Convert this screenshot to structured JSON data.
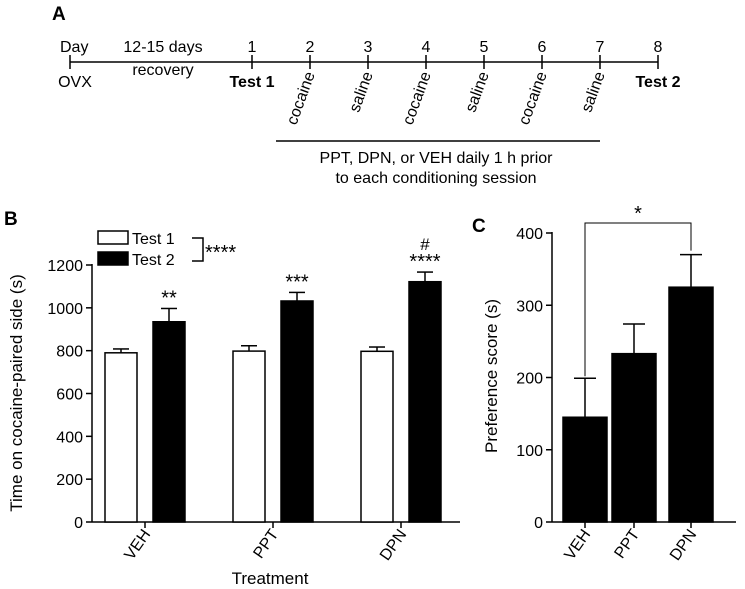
{
  "panel_labels": {
    "a": "A",
    "b": "B",
    "c": "C"
  },
  "timeline": {
    "day_label": "Day",
    "start_label": "OVX",
    "recovery_line1": "12-15 days",
    "recovery_line2": "recovery",
    "days": [
      "1",
      "2",
      "3",
      "4",
      "5",
      "6",
      "7",
      "8"
    ],
    "test1_label": "Test 1",
    "test2_label": "Test 2",
    "sessions": [
      "cocaine",
      "saline",
      "cocaine",
      "saline",
      "cocaine",
      "saline"
    ],
    "treatment_note_line1": "PPT, DPN, or VEH daily 1 h prior",
    "treatment_note_line2": "to each conditioning session"
  },
  "chart_data": [
    {
      "type": "bar",
      "id": "B",
      "ylabel": "Time on cocaine-paired side (s)",
      "xlabel": "Treatment",
      "categories": [
        "VEH",
        "PPT",
        "DPN"
      ],
      "ylim": [
        0,
        1200
      ],
      "yticks": [
        "0",
        "200",
        "400",
        "600",
        "800",
        "1000",
        "1200"
      ],
      "series": [
        {
          "name": "Test 1",
          "color": "#ffffff",
          "values": [
            790,
            798,
            797
          ],
          "errors": [
            18,
            25,
            20
          ]
        },
        {
          "name": "Test 2",
          "color": "#000000",
          "values": [
            935,
            1032,
            1122
          ],
          "errors": [
            62,
            40,
            45
          ]
        }
      ],
      "legend_significance": "****",
      "annotations": [
        "**",
        "***",
        "****"
      ],
      "extra_annotation": "#"
    },
    {
      "type": "bar",
      "id": "C",
      "ylabel": "Preference score (s)",
      "categories": [
        "VEH",
        "PPT",
        "DPN"
      ],
      "ylim": [
        0,
        400
      ],
      "yticks": [
        "0",
        "100",
        "200",
        "300",
        "400"
      ],
      "values": [
        145,
        233,
        325
      ],
      "errors": [
        54,
        41,
        45
      ],
      "color": "#000000",
      "significance": "*"
    }
  ]
}
